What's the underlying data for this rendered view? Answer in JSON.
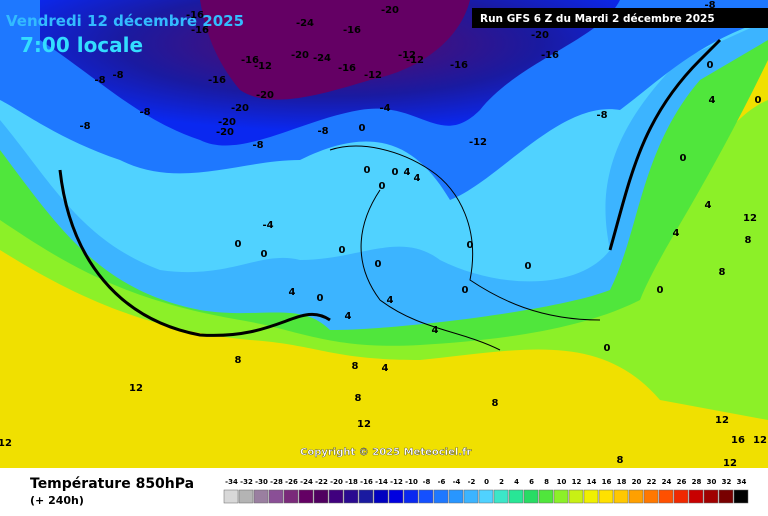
{
  "header": {
    "date": "Vendredi 12 décembre 2025",
    "time": "7:00 locale",
    "run": "Run GFS 6 Z du Mardi 2 décembre 2025"
  },
  "copyright": "Copyright © 2025 Meteociel.fr",
  "footer": {
    "title": "Température 850hPa",
    "lead": "(+ 240h)"
  },
  "scale": {
    "values": [
      -34,
      -32,
      -30,
      -28,
      -26,
      -24,
      -22,
      -20,
      -18,
      -16,
      -14,
      -12,
      -10,
      -8,
      -6,
      -4,
      -2,
      0,
      2,
      4,
      6,
      8,
      10,
      12,
      14,
      16,
      18,
      20,
      22,
      24,
      26,
      28,
      30,
      32,
      34
    ],
    "colors": [
      "#d8d8d8",
      "#b4b4b4",
      "#9a7fa0",
      "#8a4f96",
      "#7a2a7a",
      "#640064",
      "#500060",
      "#40007e",
      "#2a0a90",
      "#1a1aa0",
      "#0000c0",
      "#0000e0",
      "#0a28f0",
      "#1450ff",
      "#1e78ff",
      "#2896ff",
      "#3cb4ff",
      "#50d2ff",
      "#3ce6c8",
      "#28e696",
      "#28dc64",
      "#50e63c",
      "#8cf028",
      "#c8f014",
      "#f0f000",
      "#ffe100",
      "#ffc800",
      "#ffa000",
      "#ff7800",
      "#ff5000",
      "#f02800",
      "#c80000",
      "#a00000",
      "#780000",
      "#000000"
    ]
  },
  "contour_labels": [
    "-16",
    "-16",
    "-24",
    "-20",
    "-16",
    "-20",
    "-16",
    "-8",
    "-8",
    "-8",
    "-16",
    "-16",
    "-12",
    "-20",
    "-24",
    "-16",
    "-12",
    "-12",
    "-12",
    "-16",
    "-20",
    "-20",
    "-20",
    "-20",
    "-8",
    "-8",
    "-4",
    "0",
    "-8",
    "-8",
    "-8",
    "-12",
    "0",
    "0",
    "4",
    "0",
    "0",
    "0",
    "4",
    "4",
    "0",
    "-4",
    "0",
    "0",
    "0",
    "0",
    "0",
    "0",
    "0",
    "4",
    "0",
    "4",
    "8",
    "4",
    "12",
    "4",
    "8",
    "0",
    "4",
    "4",
    "0",
    "8",
    "4",
    "8",
    "8",
    "12",
    "12",
    "8",
    "12",
    "12",
    "16",
    "12",
    "12",
    "8"
  ]
}
